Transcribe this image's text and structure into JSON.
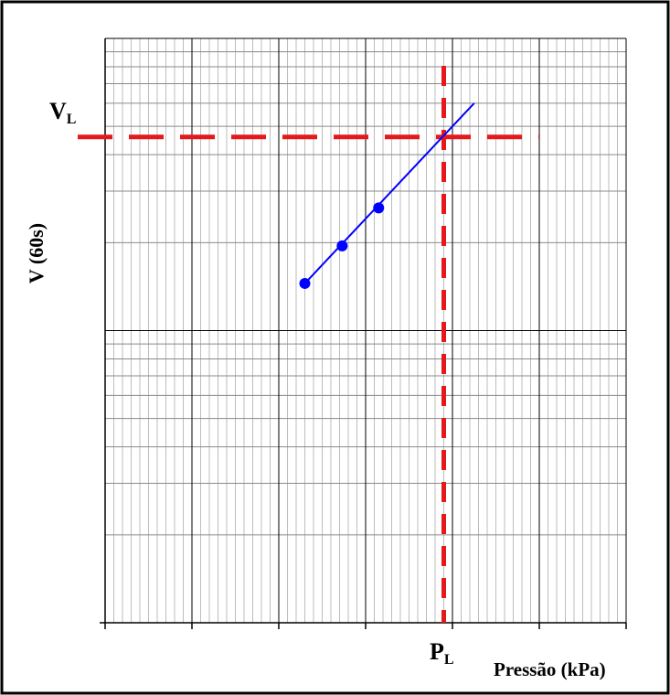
{
  "chart_data": {
    "type": "line",
    "title": "",
    "xlabel": "Pressão (kPa)",
    "ylabel": "V (60s)",
    "x_scale": "linear",
    "y_scale": "log",
    "xlim": [
      0,
      6
    ],
    "ylim": [
      1,
      100
    ],
    "grid": true,
    "series": [
      {
        "points": [
          {
            "x": 2.3,
            "y": 14.5
          },
          {
            "x": 2.73,
            "y": 19.5
          },
          {
            "x": 3.15,
            "y": 26.3
          }
        ],
        "marker": "circle",
        "color": "#0000ff"
      },
      {
        "points": [
          {
            "x": 2.3,
            "y": 14.5
          },
          {
            "x": 4.25,
            "y": 60.0
          }
        ],
        "marker": "none",
        "color": "#0000ff"
      }
    ],
    "annotations": [
      {
        "type": "vline",
        "x": 3.9,
        "color": "#e31a1c",
        "style": "dashed",
        "label": {
          "main": "P",
          "sub": "L"
        }
      },
      {
        "type": "hline",
        "y": 46,
        "x_end": 5,
        "color": "#e31a1c",
        "style": "dashed",
        "label": {
          "main": "V",
          "sub": "L"
        }
      }
    ]
  }
}
